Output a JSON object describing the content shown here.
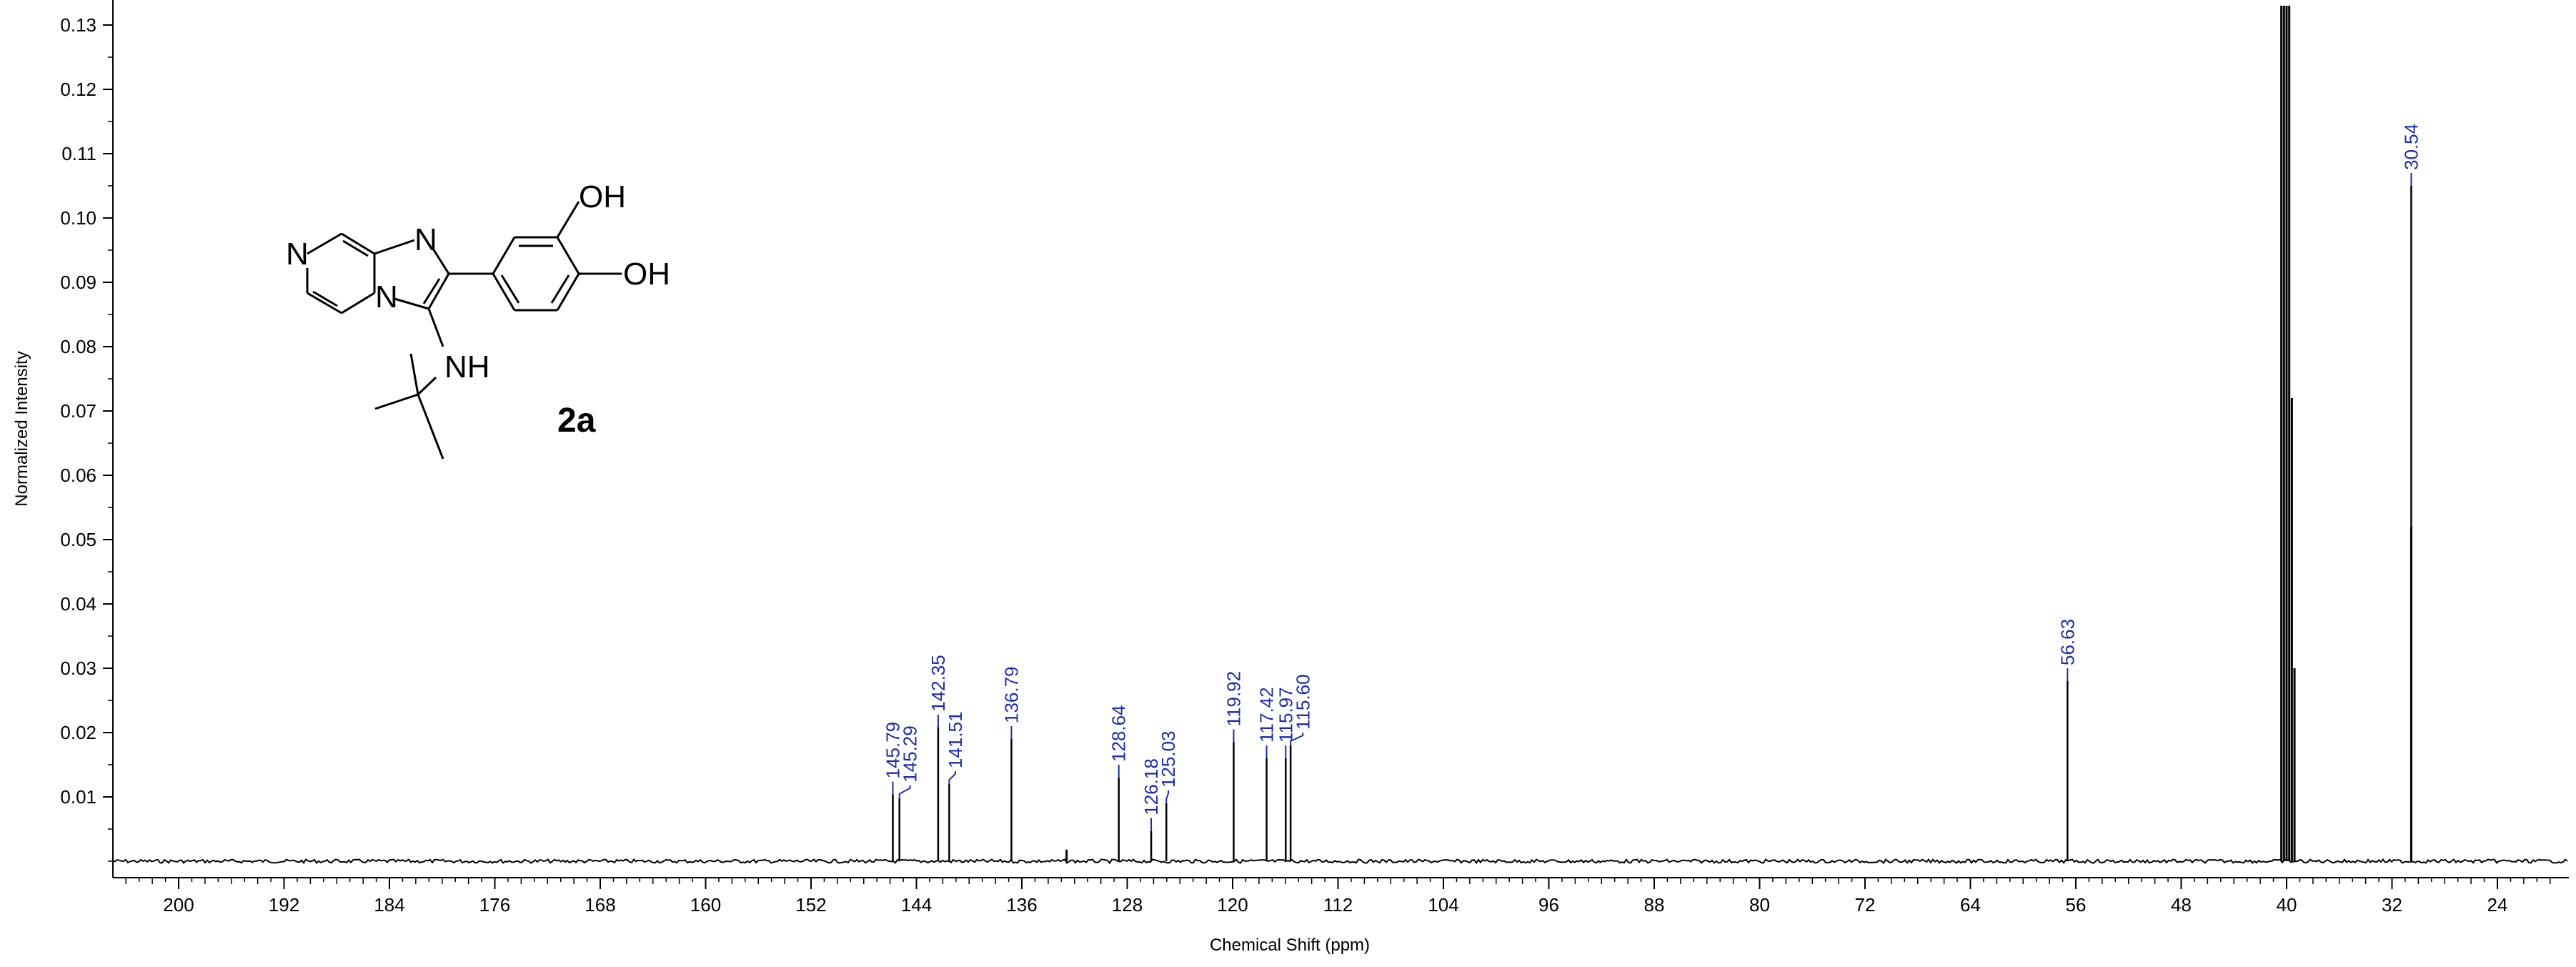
{
  "chart_data": {
    "type": "line",
    "xlabel": "Chemical Shift (ppm)",
    "ylabel": "Normalized Intensity",
    "x_reversed": true,
    "xlim": [
      205,
      20
    ],
    "ylim": [
      0,
      0.13
    ],
    "grid": false,
    "x_ticks": [
      200,
      192,
      184,
      176,
      168,
      160,
      152,
      144,
      136,
      128,
      120,
      112,
      104,
      96,
      88,
      80,
      72,
      64,
      56,
      48,
      40,
      32,
      24
    ],
    "y_ticks": [
      0.01,
      0.02,
      0.03,
      0.04,
      0.05,
      0.06,
      0.07,
      0.08,
      0.09,
      0.1,
      0.11,
      0.12,
      0.13
    ],
    "y_tick_labels": [
      "0.01",
      "0.02",
      "0.03",
      "0.04",
      "0.05",
      "0.06",
      "0.07",
      "0.08",
      "0.09",
      "0.10",
      "0.11",
      "0.12",
      "0.13"
    ],
    "peaks": [
      {
        "shift": 145.79,
        "label": "145.79",
        "height": 0.0104
      },
      {
        "shift": 145.29,
        "label": "145.29",
        "height": 0.0098
      },
      {
        "shift": 142.35,
        "label": "142.35",
        "height": 0.0208
      },
      {
        "shift": 141.51,
        "label": "141.51",
        "height": 0.012
      },
      {
        "shift": 136.79,
        "label": "136.79",
        "height": 0.019
      },
      {
        "shift": 128.64,
        "label": "128.64",
        "height": 0.013
      },
      {
        "shift": 126.18,
        "label": "126.18",
        "height": 0.0047
      },
      {
        "shift": 125.03,
        "label": "125.03",
        "height": 0.009
      },
      {
        "shift": 119.92,
        "label": "119.92",
        "height": 0.0185
      },
      {
        "shift": 117.42,
        "label": "117.42",
        "height": 0.016
      },
      {
        "shift": 115.97,
        "label": "115.97",
        "height": 0.016
      },
      {
        "shift": 115.6,
        "label": "115.60",
        "height": 0.018
      },
      {
        "shift": 56.63,
        "label": "56.63",
        "height": 0.028
      },
      {
        "shift": 30.54,
        "label": "30.54",
        "height": 0.105
      }
    ],
    "unlabeled_peaks": [
      {
        "shift": 132.6,
        "height": 0.0018
      },
      {
        "shift": 40.4,
        "height": 0.134
      },
      {
        "shift": 40.2,
        "height": 0.134
      },
      {
        "shift": 40.0,
        "height": 0.134
      },
      {
        "shift": 39.8,
        "height": 0.134
      },
      {
        "shift": 39.6,
        "height": 0.072
      },
      {
        "shift": 39.4,
        "height": 0.03
      },
      {
        "shift": 30.54,
        "height": 0.052
      }
    ],
    "compound_label": "2a",
    "structure_atoms": {
      "n_ring": "N",
      "n_imid": "N",
      "n_bridge": "N",
      "oh_top": "OH",
      "oh_side": "OH",
      "nh": "NH"
    }
  }
}
